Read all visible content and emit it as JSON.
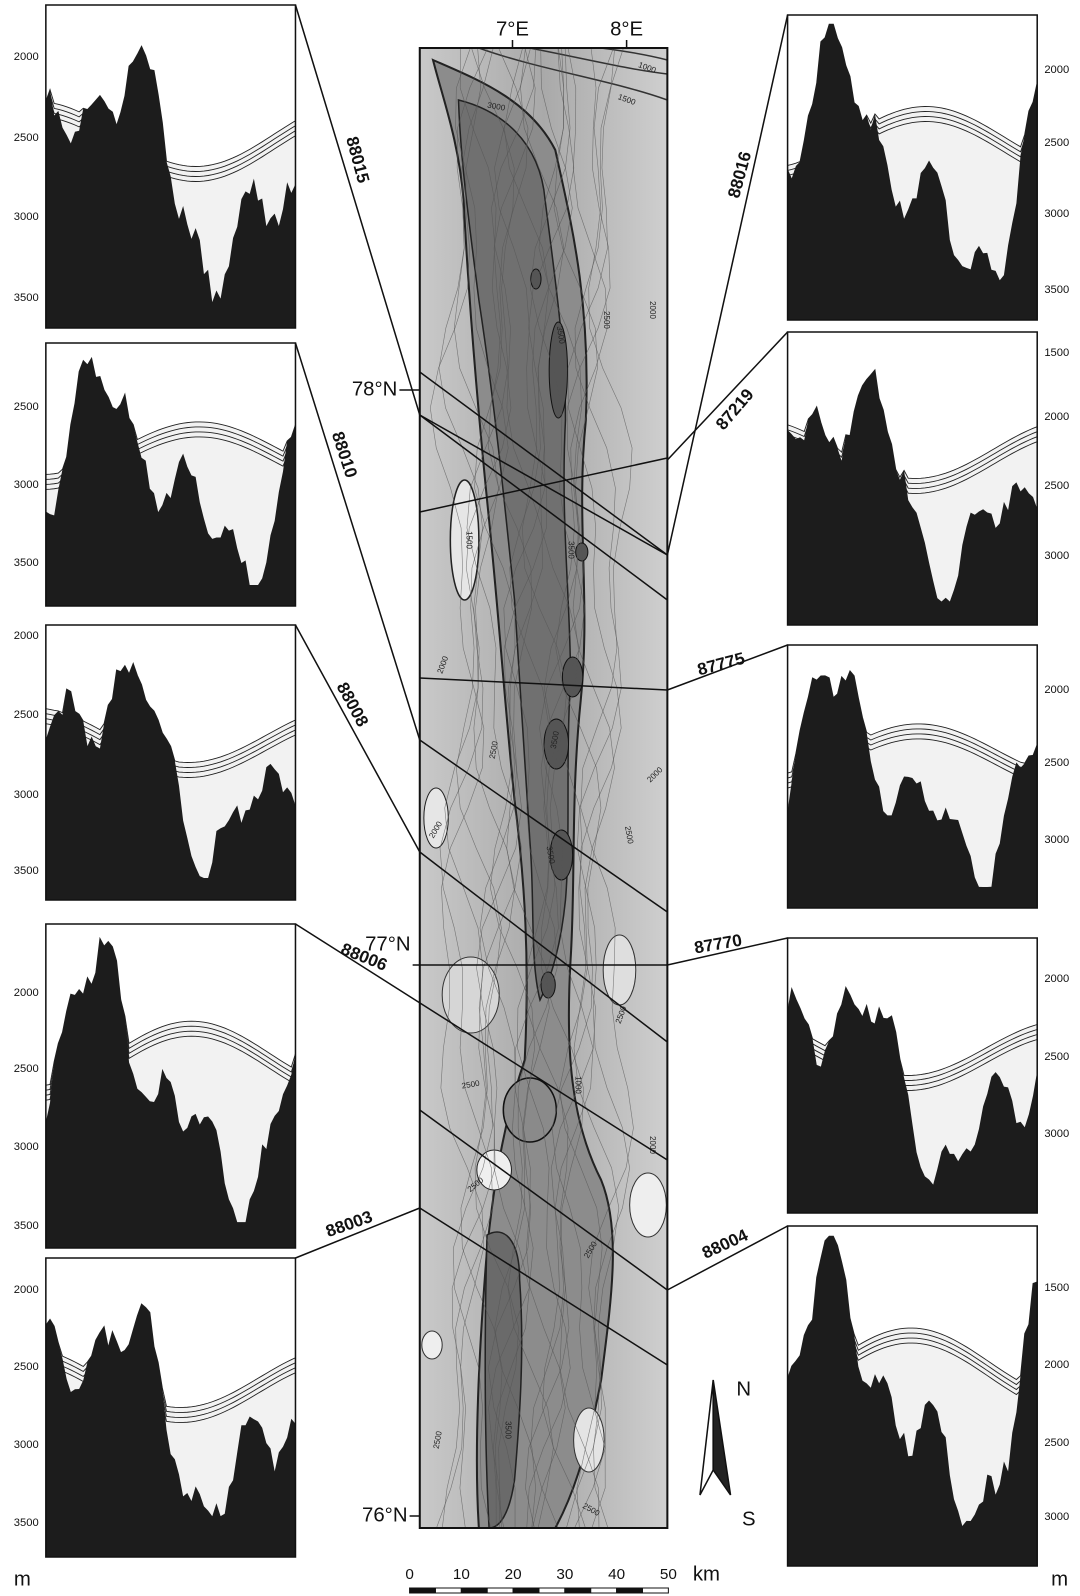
{
  "map": {
    "lon_labels": [
      "7°E",
      "8°E"
    ],
    "lat_labels": [
      "78°N",
      "77°N",
      "76°N"
    ],
    "contour_labels": [
      "1000",
      "1500",
      "3000",
      "2000",
      "2500",
      "3500",
      "1500",
      "3500",
      "2000",
      "2500",
      "3500",
      "2000",
      "2000",
      "2500",
      "3500",
      "2500",
      "1000",
      "2500",
      "2000",
      "2500",
      "2500",
      "2500",
      "3500",
      "2500"
    ]
  },
  "profiles": [
    {
      "id": "88015",
      "depth_ticks": [
        "2000",
        "2500",
        "3000",
        "3500"
      ]
    },
    {
      "id": "88010",
      "depth_ticks": [
        "2500",
        "3000",
        "3500"
      ]
    },
    {
      "id": "88008",
      "depth_ticks": [
        "2000",
        "2500",
        "3000",
        "3500"
      ]
    },
    {
      "id": "88006",
      "depth_ticks": [
        "2000",
        "2500",
        "3000",
        "3500"
      ]
    },
    {
      "id": "88003",
      "depth_ticks": [
        "2000",
        "2500",
        "3000",
        "3500"
      ]
    },
    {
      "id": "88016",
      "depth_ticks": [
        "2000",
        "2500",
        "3000",
        "3500"
      ]
    },
    {
      "id": "87219",
      "depth_ticks": [
        "1500",
        "2000",
        "2500",
        "3000"
      ]
    },
    {
      "id": "87775",
      "depth_ticks": [
        "2000",
        "2500",
        "3000"
      ]
    },
    {
      "id": "87770",
      "depth_ticks": [
        "2000",
        "2500",
        "3000"
      ]
    },
    {
      "id": "88004",
      "depth_ticks": [
        "1500",
        "2000",
        "2500",
        "3000"
      ]
    }
  ],
  "depth_unit": [
    "m",
    "m"
  ],
  "compass": {
    "north": "N",
    "south": "S"
  },
  "scale_bar": {
    "ticks": [
      "0",
      "10",
      "20",
      "30",
      "40",
      "50"
    ],
    "unit": "km"
  }
}
